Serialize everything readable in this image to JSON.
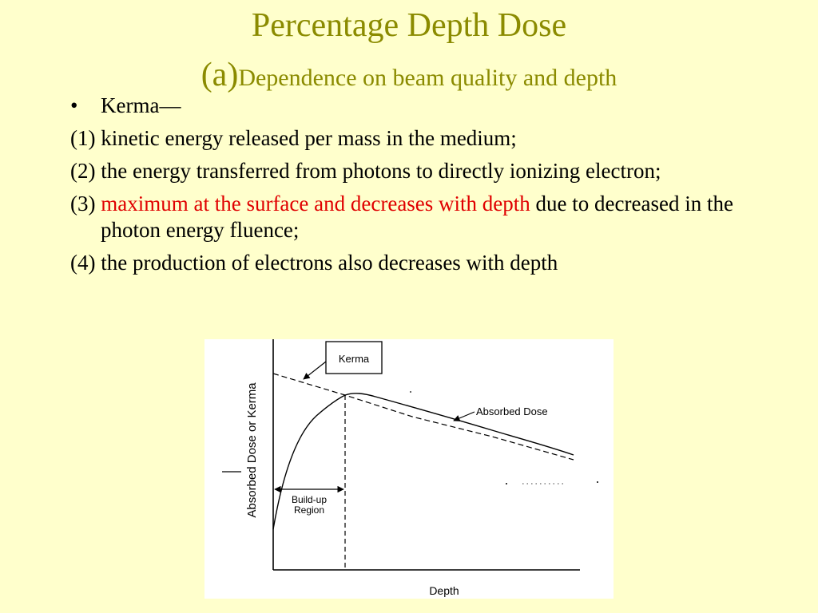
{
  "slide": {
    "title": "Percentage Depth Dose",
    "subtitle_prefix": "(a)",
    "subtitle": "Dependence on beam quality and depth",
    "bullet_symbol": "•",
    "bullet_head": "Kerma—",
    "items": [
      {
        "plain": "(1) kinetic energy released per mass in the medium;"
      },
      {
        "plain": "(2) the energy transferred from photons to directly ionizing electron;"
      },
      {
        "prefix": "(3) ",
        "highlight": "maximum at the surface and decreases with depth",
        "suffix": " due to decreased in the photon energy fluence;"
      },
      {
        "plain": "(4) the production of electrons also decreases with depth"
      }
    ]
  },
  "figure": {
    "y_axis_label": "Absorbed Dose or Kerma",
    "x_axis_label": "Depth",
    "kerma_label": "Kerma",
    "absorbed_dose_label": "Absorbed Dose",
    "buildup_line1": "Build-up",
    "buildup_line2": "Region"
  },
  "colors": {
    "background": "#ffffcc",
    "title": "#8b8b00",
    "highlight": "#e00000"
  }
}
